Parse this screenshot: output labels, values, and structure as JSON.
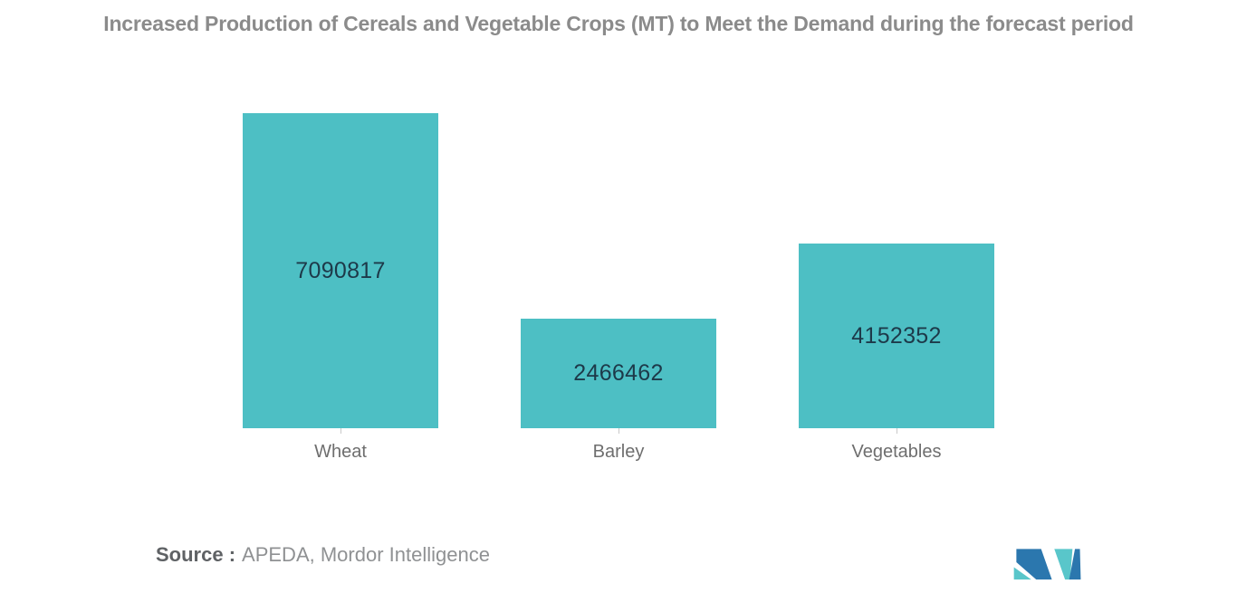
{
  "chart_data": {
    "type": "bar",
    "title": "Increased Production of Cereals and Vegetable Crops (MT) to Meet the Demand during the forecast period",
    "categories": [
      "Wheat",
      "Barley",
      "Vegetables"
    ],
    "values": [
      7090817,
      2466462,
      4152352
    ],
    "xlabel": "",
    "ylabel": "",
    "ylim": [
      0,
      7090817
    ],
    "grid": false,
    "legend": false,
    "bar_color": "#4dbfc4",
    "value_label_color": "#1d3949",
    "tick_color": "#c9c9c9"
  },
  "source": {
    "prefix": "Source :",
    "text": "APEDA, Mordor Intelligence"
  },
  "logo": {
    "name": "mordor-intelligence-logo",
    "colors": {
      "blue": "#2b77ae",
      "teal": "#59c6ca"
    }
  }
}
